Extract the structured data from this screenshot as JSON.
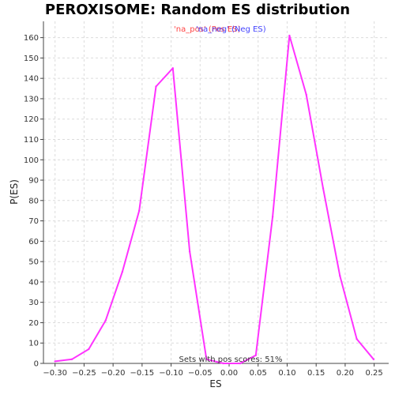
{
  "chart_data": {
    "type": "line",
    "title": "PEROXISOME: Random ES distribution",
    "xlabel": "ES",
    "ylabel": "P(ES)",
    "xlim": [
      -0.32,
      0.275
    ],
    "ylim": [
      0,
      168
    ],
    "xticks": [
      -0.3,
      -0.25,
      -0.2,
      -0.15,
      -0.1,
      -0.05,
      0.0,
      0.05,
      0.1,
      0.15,
      0.2,
      0.25
    ],
    "xtick_labels": [
      "−0.30",
      "−0.25",
      "−0.20",
      "−0.15",
      "−0.10",
      "−0.05",
      "0.00",
      "0.05",
      "0.10",
      "0.15",
      "0.20",
      "0.25"
    ],
    "yticks": [
      0,
      10,
      20,
      30,
      40,
      50,
      60,
      70,
      80,
      90,
      100,
      110,
      120,
      130,
      140,
      150,
      160
    ],
    "grid": true,
    "legend": [
      {
        "label": "'na_pos' (Pos ES)",
        "color": "#ff4444"
      },
      {
        "label": "'na_neg' (Neg ES)",
        "color": "#4444ff"
      }
    ],
    "annotation": "Sets with pos scores: 51%",
    "series": [
      {
        "color": "#ff33ff",
        "x": [
          -0.3,
          -0.271,
          -0.242,
          -0.213,
          -0.184,
          -0.155,
          -0.126,
          -0.097,
          -0.068,
          -0.039,
          -0.01,
          0.019,
          0.046,
          0.075,
          0.104,
          0.133,
          0.162,
          0.191,
          0.22,
          0.249
        ],
        "y": [
          1,
          2,
          7,
          21,
          45,
          75,
          136,
          145,
          55,
          2,
          0,
          0,
          4,
          72,
          161,
          132,
          86,
          43,
          12,
          2
        ]
      }
    ]
  }
}
